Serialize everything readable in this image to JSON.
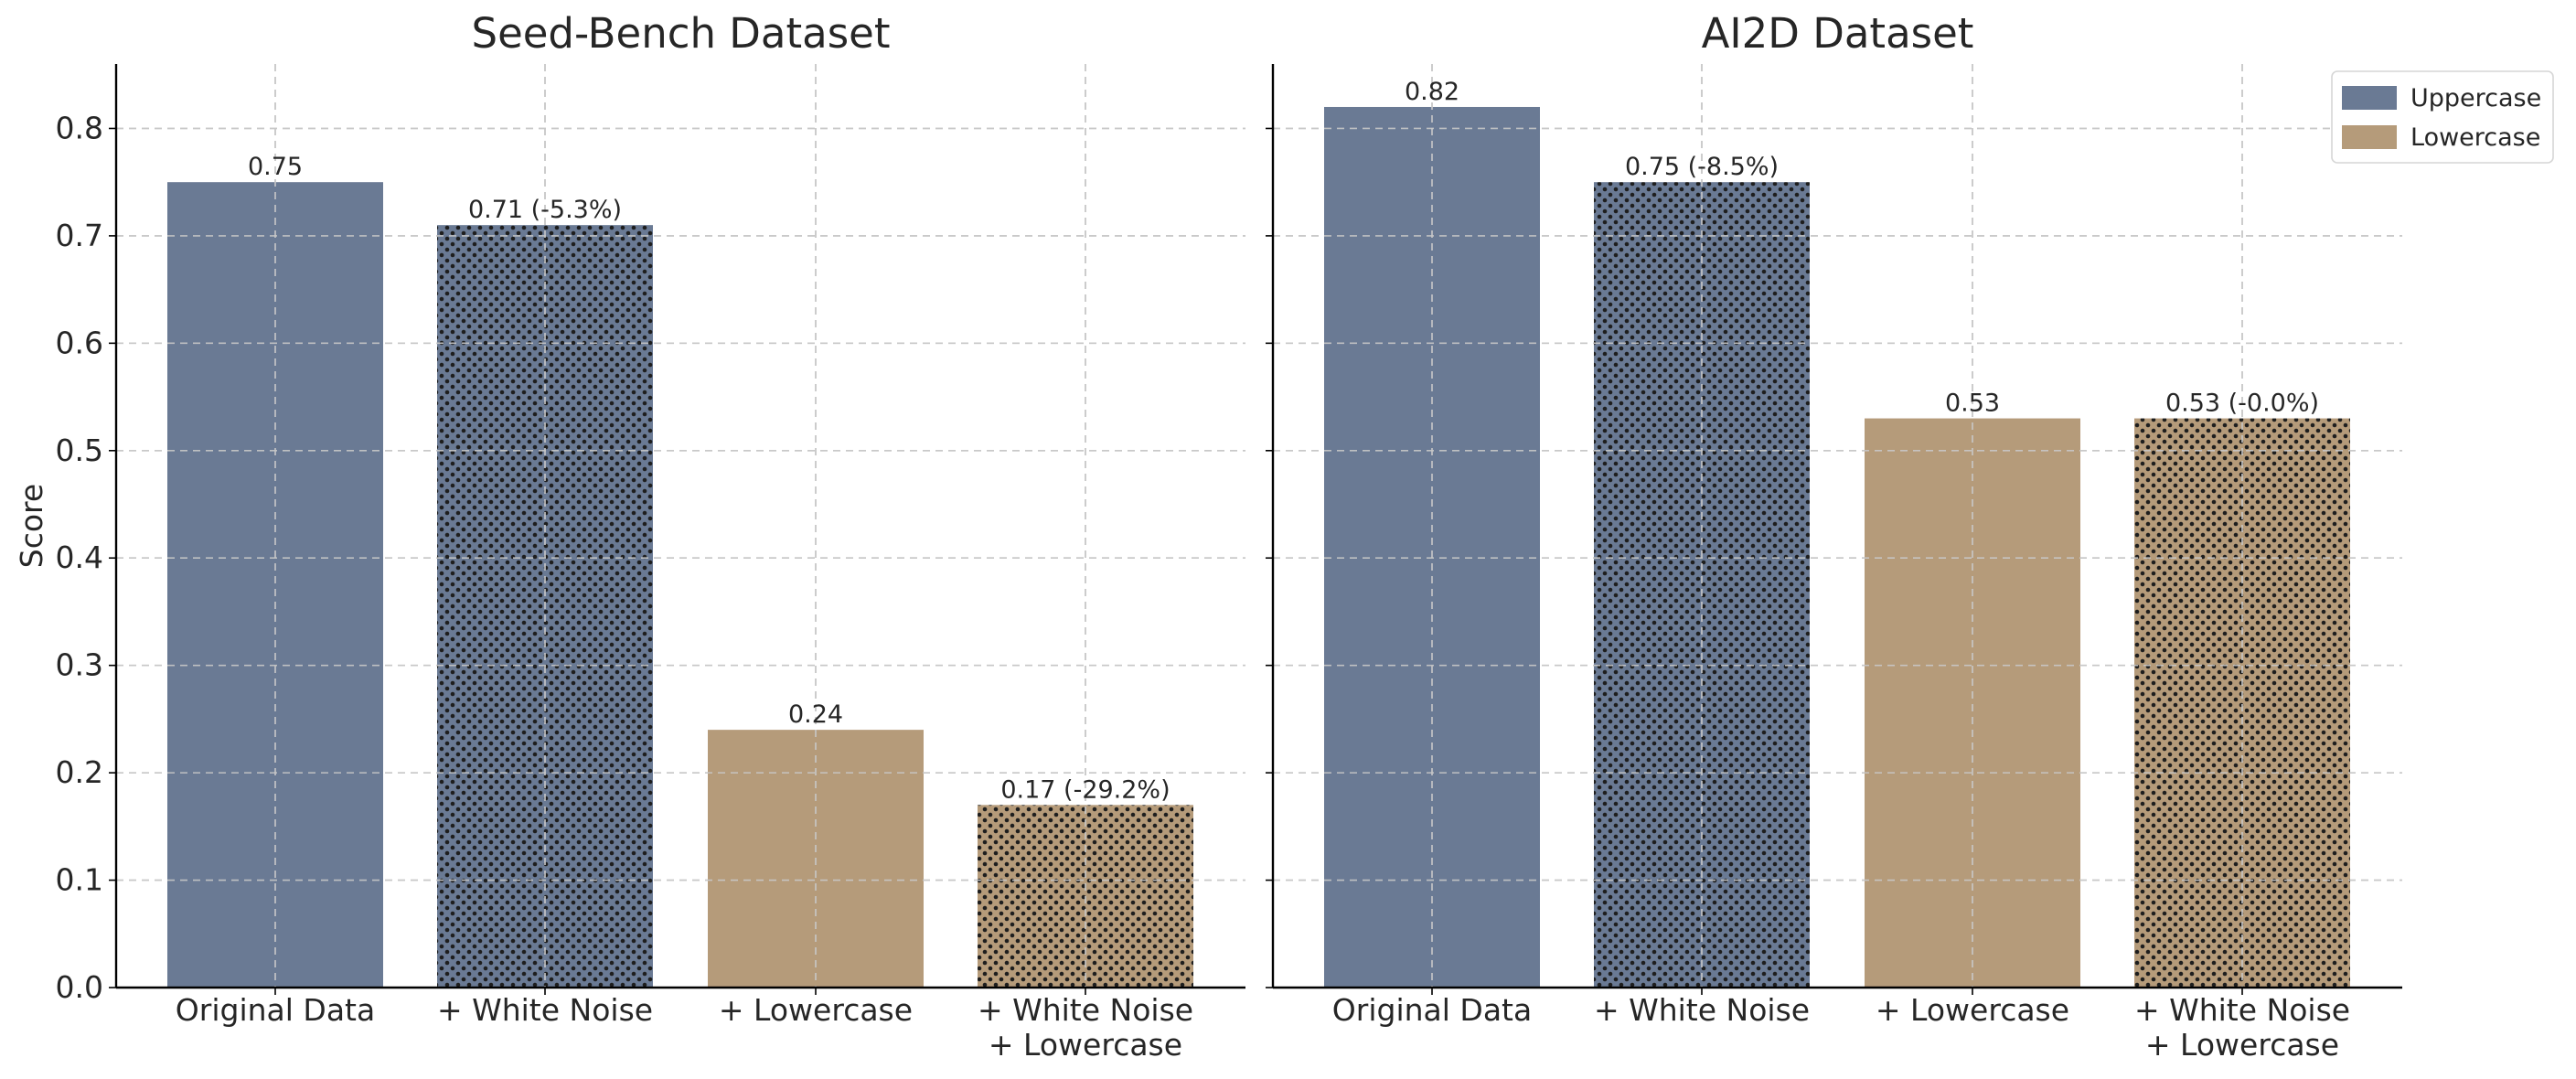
{
  "colors": {
    "Uppercase": "#6a7a94",
    "Lowercase": "#b59b7a",
    "hatch_dot": "#1e1e1e"
  },
  "chart_data": [
    {
      "type": "bar",
      "title": "Seed-Bench Dataset",
      "ylabel": "Score",
      "ylim": [
        0,
        0.86
      ],
      "yticks": [
        "0.0",
        "0.1",
        "0.2",
        "0.3",
        "0.4",
        "0.5",
        "0.6",
        "0.7",
        "0.8"
      ],
      "grid": true,
      "categories": [
        [
          "Original Data"
        ],
        [
          "+ White Noise"
        ],
        [
          "+ Lowercase"
        ],
        [
          "+ White Noise",
          "+ Lowercase"
        ]
      ],
      "values": [
        0.75,
        0.71,
        0.24,
        0.17
      ],
      "bar_labels": [
        "0.75",
        "0.71 (-5.3%)",
        "0.24",
        "0.17 (-29.2%)"
      ],
      "bar_series": [
        "Uppercase",
        "Uppercase",
        "Lowercase",
        "Lowercase"
      ],
      "hatched": [
        false,
        true,
        false,
        true
      ]
    },
    {
      "type": "bar",
      "title": "AI2D Dataset",
      "ylabel": "",
      "ylim": [
        0,
        0.86
      ],
      "grid": true,
      "categories": [
        [
          "Original Data"
        ],
        [
          "+ White Noise"
        ],
        [
          "+ Lowercase"
        ],
        [
          "+ White Noise",
          "+ Lowercase"
        ]
      ],
      "values": [
        0.82,
        0.75,
        0.53,
        0.53
      ],
      "bar_labels": [
        "0.82",
        "0.75 (-8.5%)",
        "0.53",
        "0.53 (-0.0%)"
      ],
      "bar_series": [
        "Uppercase",
        "Uppercase",
        "Lowercase",
        "Lowercase"
      ],
      "hatched": [
        false,
        true,
        false,
        true
      ],
      "legend": {
        "position": "top-right",
        "entries": [
          "Uppercase",
          "Lowercase"
        ]
      }
    }
  ]
}
